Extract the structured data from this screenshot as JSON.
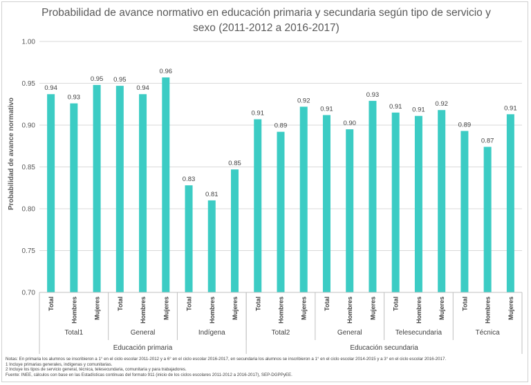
{
  "chart_data": {
    "type": "bar",
    "title": "Probabilidad de avance normativo en educación primaria y secundaria según tipo de servicio y sexo (2011-2012 a 2016-2017)",
    "title_lines": [
      "Probabilidad de avance normativo en educación primaria y secundaria según tipo de servicio y",
      "sexo (2011-2012 a 2016-2017)"
    ],
    "ylabel": "Probabilidad de avance normativo",
    "ylim": [
      0.7,
      1.0
    ],
    "yticks": [
      "1.00",
      "0.95",
      "0.90",
      "0.85",
      "0.80",
      "0.75",
      "0.70"
    ],
    "grid": true,
    "bar_color": "#3cccc4",
    "categories": [
      "Total",
      "Hombres",
      "Mujeres",
      "Total",
      "Hombres",
      "Mujeres",
      "Total",
      "Hombres",
      "Mujeres",
      "Total",
      "Hombres",
      "Mujeres",
      "Total",
      "Hombres",
      "Mujeres",
      "Total",
      "Hombres",
      "Mujeres",
      "Total",
      "Hombres",
      "Mujeres"
    ],
    "values": [
      0.937,
      0.926,
      0.948,
      0.947,
      0.937,
      0.957,
      0.828,
      0.81,
      0.847,
      0.907,
      0.892,
      0.922,
      0.912,
      0.895,
      0.929,
      0.915,
      0.911,
      0.918,
      0.893,
      0.874,
      0.913
    ],
    "value_labels": [
      "0.94",
      "0.93",
      "0.95",
      "0.95",
      "0.94",
      "0.96",
      "0.83",
      "0.81",
      "0.85",
      "0.91",
      "0.89",
      "0.92",
      "0.91",
      "0.90",
      "0.93",
      "0.91",
      "0.91",
      "0.92",
      "0.89",
      "0.87",
      "0.91"
    ],
    "subgroups": [
      "Total1",
      "General",
      "Indígena",
      "Total2",
      "General",
      "Telesecundaria",
      "Técnica"
    ],
    "groups": [
      {
        "label": "Educación primaria",
        "subgroup_count": 3
      },
      {
        "label": "Educación secundaria",
        "subgroup_count": 4
      }
    ]
  },
  "notes": [
    "Notas: En primaria los alumnos se inscribieron a 1° en el ciclo escolar 2011-2012 y a 6° en el ciclo escolar 2016-2017, en secundaria los alumnos se inscribieron a 1° en el ciclo escolar 2014-2015 y a 3° en el ciclo escolar 2016-2017.",
    "1 Incluye primarias generales, indígenas y comunitarias.",
    "2 Incluye los tipos de servicio general, técnica, telesecundaria, comunitaria y para trabajadores.",
    "Fuente: INEE, cálculos con base en las Estadísticas continuas del formato 911 (inicio de los ciclos escolares 2011-2012 a 2016-2017), SEP-DGPPyEE."
  ]
}
